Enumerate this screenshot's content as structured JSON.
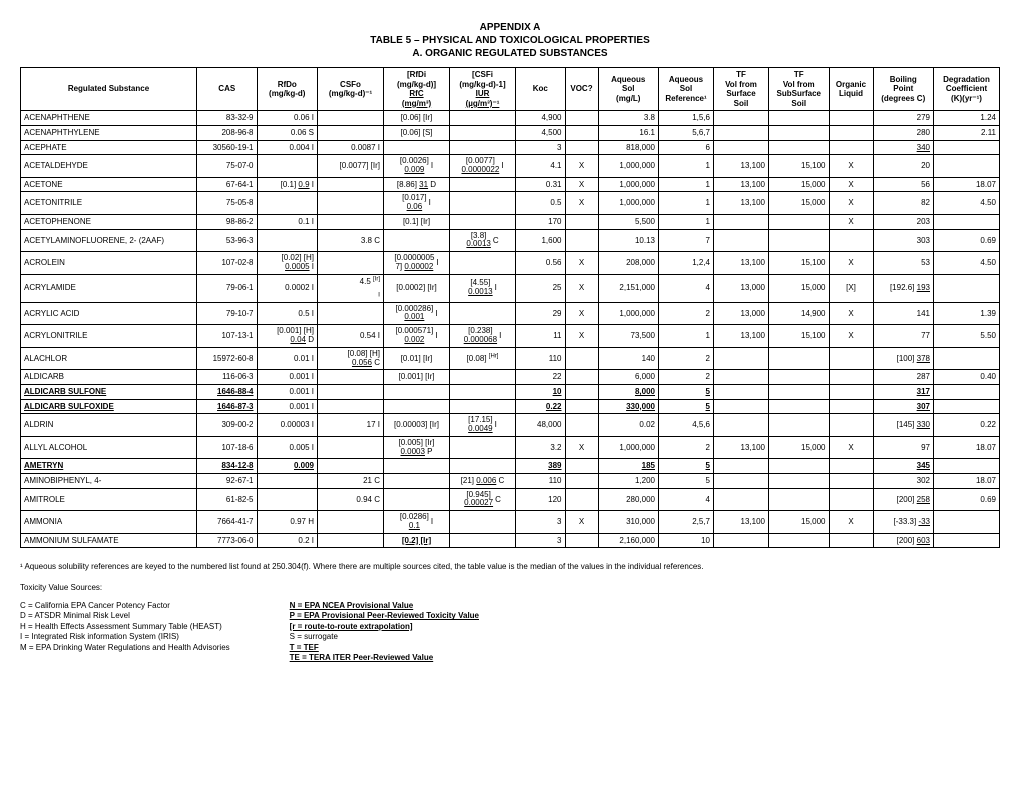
{
  "titles": {
    "t1": "APPENDIX A",
    "t2": "TABLE 5 – PHYSICAL AND TOXICOLOGICAL PROPERTIES",
    "t3": "A. ORGANIC REGULATED SUBSTANCES"
  },
  "headers": {
    "name": "Regulated Substance",
    "cas": "CAS",
    "rfdo_l1": "RfDo",
    "rfdo_l2": "(mg/kg-d)",
    "csfo_l1": "CSFo",
    "csfo_l2": "(mg/kg-d)⁻¹",
    "rfdi_l1": "[RfDi",
    "rfdi_l2": "(mg/kg-d)]",
    "rfdi_l3": "RfC",
    "rfdi_l4": "(mg/m³)",
    "csfi_l1": "[CSFi",
    "csfi_l2": "(mg/kg-d)-1]",
    "csfi_l3": "IUR",
    "csfi_l4": "(µg/m³)⁻¹",
    "koc": "Koc",
    "voc": "VOC?",
    "aqsol_l1": "Aqueous",
    "aqsol_l2": "Sol",
    "aqsol_l3": "(mg/L)",
    "aqref_l1": "Aqueous",
    "aqref_l2": "Sol",
    "aqref_l3": "Reference¹",
    "tfsurf_l1": "TF",
    "tfsurf_l2": "Vol from",
    "tfsurf_l3": "Surface",
    "tfsurf_l4": "Soil",
    "tfsub_l1": "TF",
    "tfsub_l2": "Vol from",
    "tfsub_l3": "SubSurface",
    "tfsub_l4": "Soil",
    "orgliq_l1": "Organic",
    "orgliq_l2": "Liquid",
    "bp_l1": "Boiling",
    "bp_l2": "Point",
    "bp_l3": "(degrees C)",
    "deg_l1": "Degradation",
    "deg_l2": "Coefficient",
    "deg_l3": "(K)(yr⁻¹)"
  },
  "rows": [
    {
      "name": "ACENAPHTHENE",
      "cas": "83-32-9",
      "rfdo": "0.06  I",
      "csfo": "",
      "rfdi": "[0.06] [Ir]",
      "csfi": "",
      "koc": "4,900",
      "voc": "",
      "aqsol": "3.8",
      "aqref": "1,5,6",
      "tfsurf": "",
      "tfsub": "",
      "orgliq": "",
      "bp": "279",
      "deg": "1.24"
    },
    {
      "name": "ACENAPHTHYLENE",
      "cas": "208-96-8",
      "rfdo": "0.06  S",
      "csfo": "",
      "rfdi": "[0.06] [S]",
      "csfi": "",
      "koc": "4,500",
      "voc": "",
      "aqsol": "16.1",
      "aqref": "5,6,7",
      "tfsurf": "",
      "tfsub": "",
      "orgliq": "",
      "bp": "280",
      "deg": "2.11"
    },
    {
      "name": "ACEPHATE",
      "cas": "30560-19-1",
      "rfdo": "0.004  I",
      "csfo": "0.0087  I",
      "rfdi": "",
      "csfi": "",
      "koc": "3",
      "voc": "",
      "aqsol": "818,000",
      "aqref": "6",
      "tfsurf": "",
      "tfsub": "",
      "orgliq": "",
      "bp": "340",
      "deg": "",
      "bpU": true
    },
    {
      "name": "ACETALDEHYDE",
      "cas": "75-07-0",
      "rfdo": "",
      "csfo": "[0.0077] [Ir]",
      "rfdi": "<div class='stack'><span>[0.0026]</span><span class='u'>0.009</span></div>",
      "rfdiSuf": "I",
      "csfi": "<div class='stack'><span>[0.0077]</span><span class='u'>0.0000022</span></div>",
      "csfiSuf": "I",
      "koc": "4.1",
      "voc": "X",
      "aqsol": "1,000,000",
      "aqref": "1",
      "tfsurf": "13,100",
      "tfsub": "15,100",
      "orgliq": "X",
      "bp": "20",
      "deg": ""
    },
    {
      "name": "ACETONE",
      "cas": "67-64-1",
      "rfdo": "[0.1] <span class='u'>0.9</span>  I",
      "csfo": "",
      "rfdi": "[8.86] <span class='u'>31</span>  D",
      "csfi": "",
      "koc": "0.31",
      "voc": "X",
      "aqsol": "1,000,000",
      "aqref": "1",
      "tfsurf": "13,100",
      "tfsub": "15,000",
      "orgliq": "X",
      "bp": "56",
      "deg": "18.07"
    },
    {
      "name": "ACETONITRILE",
      "cas": "75-05-8",
      "rfdo": "",
      "csfo": "",
      "rfdi": "<div class='stack'><span>[0.017]</span><span class='u'>0.06</span></div>",
      "rfdiSuf": "I",
      "csfi": "",
      "koc": "0.5",
      "voc": "X",
      "aqsol": "1,000,000",
      "aqref": "1",
      "tfsurf": "13,100",
      "tfsub": "15,000",
      "orgliq": "X",
      "bp": "82",
      "deg": "4.50"
    },
    {
      "name": "ACETOPHENONE",
      "cas": "98-86-2",
      "rfdo": "0.1  I",
      "csfo": "",
      "rfdi": "[0.1] [Ir]",
      "csfi": "",
      "koc": "170",
      "voc": "",
      "aqsol": "5,500",
      "aqref": "1",
      "tfsurf": "",
      "tfsub": "",
      "orgliq": "X",
      "bp": "203",
      "deg": ""
    },
    {
      "name": "ACETYLAMINOFLUORENE, 2- (2AAF)",
      "cas": "53-96-3",
      "rfdo": "",
      "csfo": "3.8  C",
      "rfdi": "",
      "csfi": "<div class='stack'><span>[3.8]</span><span class='u'>0.0013</span></div>",
      "csfiSuf": "C",
      "koc": "1,600",
      "voc": "",
      "aqsol": "10.13",
      "aqref": "7",
      "tfsurf": "",
      "tfsub": "",
      "orgliq": "",
      "bp": "303",
      "deg": "0.69"
    },
    {
      "name": "ACROLEIN",
      "cas": "107-02-8",
      "rfdo": "<div class='stack-r'><span>[0.02] [H]</span><span><span class='u'>0.0005</span>  I</span></div>",
      "csfo": "",
      "rfdi": "<div class='stack'><span>[0.0000005</span><span>7] <span class='u'>0.00002</span></span></div>",
      "rfdiSuf": "I",
      "csfi": "",
      "koc": "0.56",
      "voc": "X",
      "aqsol": "208,000",
      "aqref": "1,2,4",
      "tfsurf": "13,100",
      "tfsub": "15,100",
      "orgliq": "X",
      "bp": "53",
      "deg": "4.50"
    },
    {
      "name": "ACRYLAMIDE",
      "cas": "79-06-1",
      "rfdo": "0.0002  I",
      "csfo": "4.5 <sup>[Ir]</sup><br><sub>I</sub>",
      "rfdi": "[0.0002] [Ir]",
      "csfi": "<div class='stack'><span>[4.55]</span><span class='u'>0.0013</span></div>",
      "csfiSuf": "I",
      "koc": "25",
      "voc": "X",
      "aqsol": "2,151,000",
      "aqref": "4",
      "tfsurf": "13,000",
      "tfsub": "15,000",
      "orgliq": "[X]",
      "bp": "[192.6] <span class='u'>193</span>",
      "deg": ""
    },
    {
      "name": "ACRYLIC ACID",
      "cas": "79-10-7",
      "rfdo": "0.5  I",
      "csfo": "",
      "rfdi": "<div class='stack'><span>[0.000286]</span><span class='u'>0.001</span></div>",
      "rfdiSuf": "I",
      "csfi": "",
      "koc": "29",
      "voc": "X",
      "aqsol": "1,000,000",
      "aqref": "2",
      "tfsurf": "13,000",
      "tfsub": "14,900",
      "orgliq": "X",
      "bp": "141",
      "deg": "1.39"
    },
    {
      "name": "ACRYLONITRILE",
      "cas": "107-13-1",
      "rfdo": "<div class='stack-r'><span>[0.001] [H]</span><span><span class='u'>0.04</span>  D</span></div>",
      "csfo": "0.54  I",
      "rfdi": "<div class='stack'><span>[0.000571]</span><span class='u'>0.002</span></div>",
      "rfdiSuf": "I",
      "csfi": "<div class='stack'><span>[0.238]</span><span class='u'>0.000068</span></div>",
      "csfiSuf": "I",
      "koc": "11",
      "voc": "X",
      "aqsol": "73,500",
      "aqref": "1",
      "tfsurf": "13,100",
      "tfsub": "15,100",
      "orgliq": "X",
      "bp": "77",
      "deg": "5.50"
    },
    {
      "name": "ALACHLOR",
      "cas": "15972-60-8",
      "rfdo": "0.01  I",
      "csfo": "<div class='stack-r'><span>[0.08] [H]</span><span><span class='u'>0.056</span>  C</span></div>",
      "rfdi": "[0.01] [Ir]",
      "csfi": "[0.08] <sup>[Hr]</sup>",
      "koc": "110",
      "voc": "",
      "aqsol": "140",
      "aqref": "2",
      "tfsurf": "",
      "tfsub": "",
      "orgliq": "",
      "bp": "[100] <span class='u'>378</span>",
      "deg": ""
    },
    {
      "name": "ALDICARB",
      "cas": "116-06-3",
      "rfdo": "0.001  I",
      "csfo": "",
      "rfdi": "[0.001] [Ir]",
      "csfi": "",
      "koc": "22",
      "voc": "",
      "aqsol": "6,000",
      "aqref": "2",
      "tfsurf": "",
      "tfsub": "",
      "orgliq": "",
      "bp": "287",
      "deg": "0.40"
    },
    {
      "name": "ALDICARB SULFONE",
      "nameB": true,
      "nameU": true,
      "cas": "1646-88-4",
      "casB": true,
      "casU": true,
      "rfdo": "0.001  I",
      "csfo": "",
      "rfdi": "",
      "csfi": "",
      "koc": "10",
      "kocB": true,
      "kocU": true,
      "voc": "",
      "aqsol": "8,000",
      "aqsolB": true,
      "aqsolU": true,
      "aqref": "5",
      "aqrefB": true,
      "aqrefU": true,
      "tfsurf": "",
      "tfsub": "",
      "orgliq": "",
      "bp": "317",
      "bpB": true,
      "bpU": true,
      "deg": ""
    },
    {
      "name": "ALDICARB SULFOXIDE",
      "nameB": true,
      "nameU": true,
      "cas": "1646-87-3",
      "casB": true,
      "casU": true,
      "rfdo": "0.001  I",
      "csfo": "",
      "rfdi": "",
      "csfi": "",
      "koc": "0.22",
      "kocB": true,
      "kocU": true,
      "voc": "",
      "aqsol": "330,000",
      "aqsolB": true,
      "aqsolU": true,
      "aqref": "5",
      "aqrefB": true,
      "aqrefU": true,
      "tfsurf": "",
      "tfsub": "",
      "orgliq": "",
      "bp": "307",
      "bpB": true,
      "bpU": true,
      "deg": ""
    },
    {
      "name": "ALDRIN",
      "cas": "309-00-2",
      "rfdo": "0.00003  I",
      "csfo": "17  I",
      "rfdi": "[0.00003] [Ir]",
      "csfi": "<div class='stack'><span>[17.15]</span><span class='u'>0.0049</span></div>",
      "csfiSuf": "I",
      "koc": "48,000",
      "voc": "",
      "aqsol": "0.02",
      "aqref": "4,5,6",
      "tfsurf": "",
      "tfsub": "",
      "orgliq": "",
      "bp": "[145] <span class='u'>330</span>",
      "deg": "0.22"
    },
    {
      "name": "ALLYL ALCOHOL",
      "cas": "107-18-6",
      "rfdo": "0.005  I",
      "csfo": "",
      "rfdi": "<div class='stack'><span>[0.005] [Ir]</span><span><span class='u'>0.0003</span>  P</span></div>",
      "csfi": "",
      "koc": "3.2",
      "voc": "X",
      "aqsol": "1,000,000",
      "aqref": "2",
      "tfsurf": "13,100",
      "tfsub": "15,000",
      "orgliq": "X",
      "bp": "97",
      "deg": "18.07"
    },
    {
      "name": "AMETRYN",
      "nameB": true,
      "nameU": true,
      "cas": "834-12-8",
      "casB": true,
      "casU": true,
      "rfdo": "0.009",
      "rfdoB": true,
      "rfdoU": true,
      "csfo": "",
      "rfdi": "",
      "csfi": "",
      "koc": "389",
      "kocB": true,
      "kocU": true,
      "voc": "",
      "aqsol": "185",
      "aqsolB": true,
      "aqsolU": true,
      "aqref": "5",
      "aqrefB": true,
      "aqrefU": true,
      "tfsurf": "",
      "tfsub": "",
      "orgliq": "",
      "bp": "345",
      "bpB": true,
      "bpU": true,
      "deg": ""
    },
    {
      "name": "AMINOBIPHENYL, 4-",
      "cas": "92-67-1",
      "rfdo": "",
      "csfo": "21  C",
      "rfdi": "",
      "csfi": "[21] <span class='u'>0.006</span>  C",
      "koc": "110",
      "voc": "",
      "aqsol": "1,200",
      "aqref": "5",
      "tfsurf": "",
      "tfsub": "",
      "orgliq": "",
      "bp": "302",
      "deg": "18.07"
    },
    {
      "name": "AMITROLE",
      "cas": "61-82-5",
      "rfdo": "",
      "csfo": "0.94  C",
      "rfdi": "",
      "csfi": "<div class='stack'><span>[0.945]</span><span class='u'>0.00027</span></div>",
      "csfiSuf": "C",
      "koc": "120",
      "voc": "",
      "aqsol": "280,000",
      "aqref": "4",
      "tfsurf": "",
      "tfsub": "",
      "orgliq": "",
      "bp": "[200] <span class='u'>258</span>",
      "deg": "0.69"
    },
    {
      "name": "AMMONIA",
      "cas": "7664-41-7",
      "rfdo": "0.97  H",
      "csfo": "",
      "rfdi": "<div class='stack'><span>[0.0286]</span><span class='u'>0.1</span></div>",
      "rfdiSuf": "I",
      "csfi": "",
      "koc": "3",
      "voc": "X",
      "aqsol": "310,000",
      "aqref": "2,5,7",
      "tfsurf": "13,100",
      "tfsub": "15,000",
      "orgliq": "X",
      "bp": "[-33.3] <span class='u'>-33</span>",
      "deg": ""
    },
    {
      "name": "AMMONIUM SULFAMATE",
      "cas": "7773-06-0",
      "rfdo": "0.2  I",
      "csfo": "",
      "rfdi": "<span class='b u'>[0.2]  [Ir]</span>",
      "csfi": "",
      "koc": "3",
      "voc": "",
      "aqsol": "2,160,000",
      "aqref": "10",
      "tfsurf": "",
      "tfsub": "",
      "orgliq": "",
      "bp": "[200] <span class='u'>603</span>",
      "deg": ""
    }
  ],
  "footnote": "¹ Aqueous solubility references are keyed to the numbered list found at 250.304(f). Where there are multiple sources cited, the table value is the median of the values in the individual references.",
  "legend": {
    "header": "Toxicity Value Sources:",
    "left": [
      "C = California EPA Cancer Potency Factor",
      "D = ATSDR Minimal Risk Level",
      "H = Health Effects Assessment Summary Table (HEAST)",
      "I = Integrated Risk information System (IRIS)",
      "M = EPA Drinking Water Regulations and Health Advisories"
    ],
    "right": [
      "N = EPA NCEA Provisional Value",
      "P = EPA Provisional Peer-Reviewed Toxicity Value",
      "[r = route-to-route extrapolation]",
      "S = surrogate",
      "T = TEF",
      "TE = TERA ITER Peer-Reviewed Value"
    ],
    "rightBold": [
      true,
      true,
      true,
      false,
      true,
      true
    ]
  }
}
